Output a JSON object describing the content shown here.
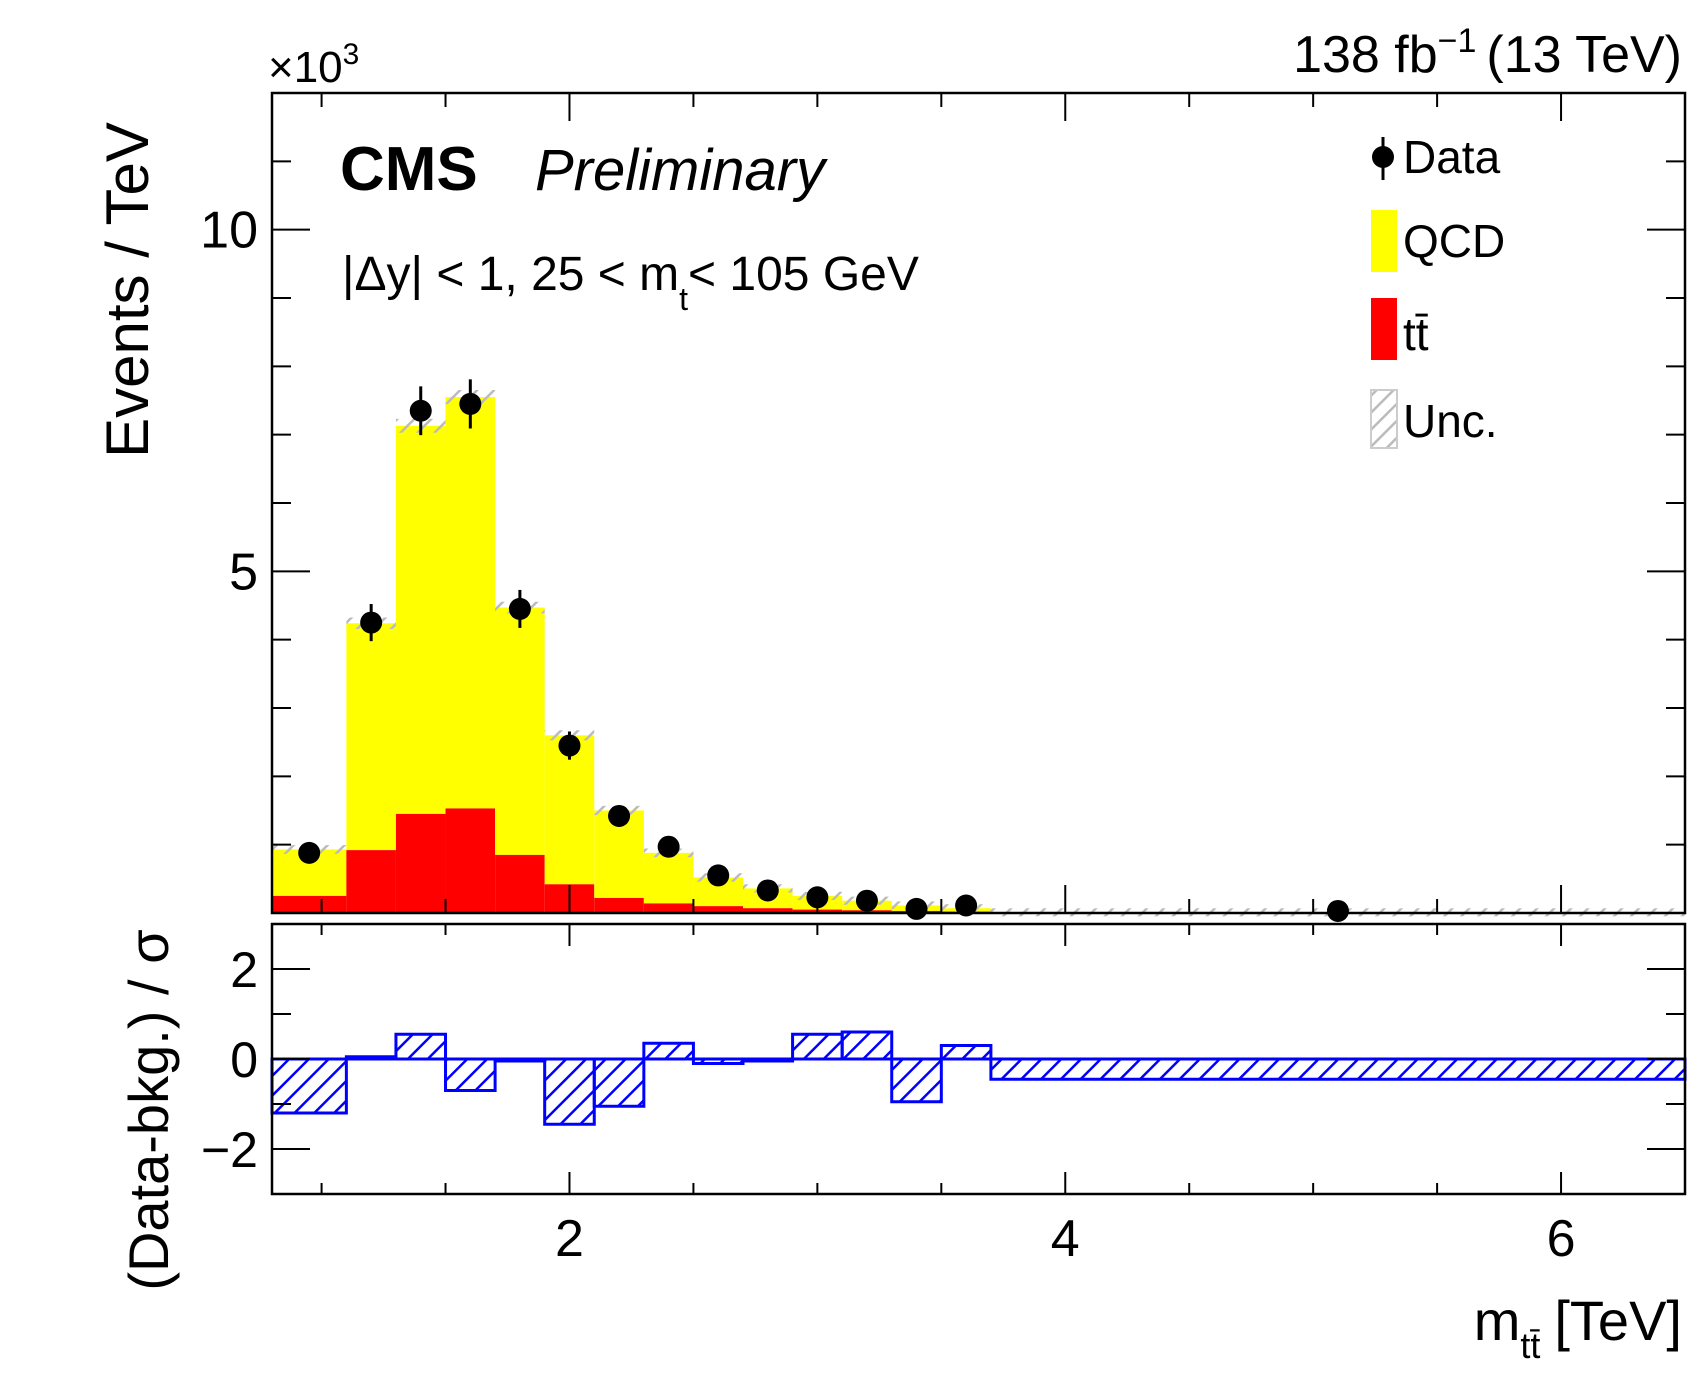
{
  "header": {
    "lumi": "138 fb",
    "lumi_exp": "−1",
    "energy": "(13 TeV)",
    "exponent_base": "×10",
    "exponent_power": "3"
  },
  "labels": {
    "cms": "CMS",
    "preliminary": "Preliminary",
    "selection_a": "|Δy| < 1, 25 < m",
    "selection_sub": "t",
    "selection_b": "< 105 GeV",
    "ylabel_top": "Events / TeV",
    "ylabel_bottom": "(Data-bkg.) / σ",
    "xlabel_main": "m",
    "xlabel_sub": "tt̄",
    "xlabel_unit": "[TeV]"
  },
  "legend": {
    "data": "Data",
    "qcd": "QCD",
    "ttbar": "tt̄",
    "unc": "Unc."
  },
  "colors": {
    "qcd": "#ffff00",
    "ttbar": "#ff0000",
    "data": "#000000",
    "unc": "#bbbbbb",
    "pull": "#0000ff"
  },
  "chart_data": {
    "type": "bar",
    "stacked": true,
    "title": "",
    "xlabel": "m_tt̄ [TeV]",
    "ylabel": "Events / TeV",
    "y_scale_factor": 1000,
    "xlim": [
      0.8,
      6.5
    ],
    "ylim": [
      0,
      12
    ],
    "x_ticks": [
      2,
      4,
      6
    ],
    "y_ticks": [
      5,
      10
    ],
    "bin_edges": [
      0.8,
      1.1,
      1.3,
      1.5,
      1.7,
      1.9,
      2.1,
      2.3,
      2.5,
      2.7,
      2.9,
      3.1,
      3.3,
      3.5,
      3.7,
      6.5
    ],
    "series": [
      {
        "name": "tt̄",
        "values": [
          0.25,
          0.92,
          1.45,
          1.53,
          0.85,
          0.42,
          0.22,
          0.14,
          0.1,
          0.07,
          0.05,
          0.04,
          0.03,
          0.02,
          0.004
        ]
      },
      {
        "name": "QCD",
        "values": [
          0.68,
          3.32,
          5.68,
          6.02,
          3.62,
          2.18,
          1.28,
          0.74,
          0.42,
          0.29,
          0.2,
          0.14,
          0.08,
          0.05,
          0.006
        ]
      }
    ],
    "data_points": [
      {
        "x": 0.95,
        "y": 0.88
      },
      {
        "x": 1.2,
        "y": 4.25
      },
      {
        "x": 1.4,
        "y": 7.35
      },
      {
        "x": 1.6,
        "y": 7.45
      },
      {
        "x": 1.8,
        "y": 4.45
      },
      {
        "x": 2.0,
        "y": 2.45
      },
      {
        "x": 2.2,
        "y": 1.42
      },
      {
        "x": 2.4,
        "y": 0.97
      },
      {
        "x": 2.6,
        "y": 0.55
      },
      {
        "x": 2.8,
        "y": 0.33
      },
      {
        "x": 3.0,
        "y": 0.23
      },
      {
        "x": 3.2,
        "y": 0.18
      },
      {
        "x": 3.4,
        "y": 0.06
      },
      {
        "x": 3.6,
        "y": 0.11
      },
      {
        "x": 5.1,
        "y": 0.03
      }
    ],
    "ratio_panel": {
      "ylabel": "(Data-bkg.) / σ",
      "ylim": [
        -3,
        3
      ],
      "y_ticks": [
        -2,
        0,
        2
      ],
      "values": [
        -1.2,
        0.05,
        0.55,
        -0.7,
        0.0,
        -1.45,
        -1.05,
        0.35,
        -0.1,
        0.0,
        0.55,
        0.6,
        -0.95,
        0.3,
        -0.45
      ]
    }
  }
}
